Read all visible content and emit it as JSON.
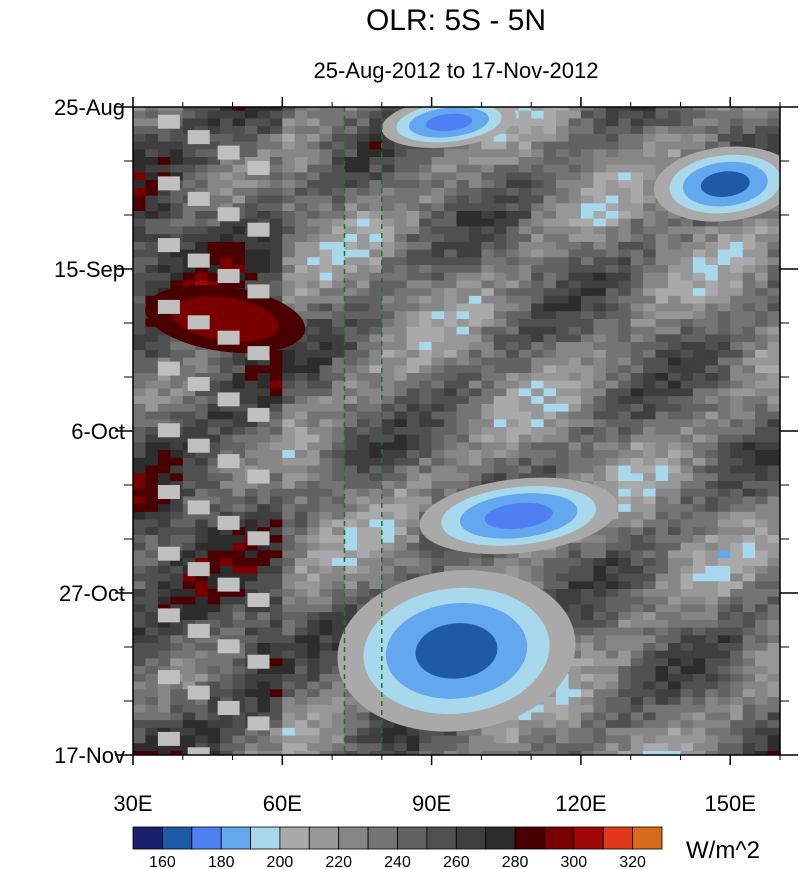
{
  "chart_data": {
    "type": "heatmap",
    "title": "OLR: 5S - 5N",
    "subtitle": "25-Aug-2012 to 17-Nov-2012",
    "units": "W/m^2",
    "x_axis": {
      "range": [
        30,
        160
      ],
      "ticks": [
        30,
        60,
        90,
        120,
        150
      ],
      "tick_labels": [
        "30E",
        "60E",
        "90E",
        "120E",
        "150E"
      ],
      "minor_ticks": [
        40,
        50,
        70,
        80,
        100,
        110,
        130,
        140,
        160
      ]
    },
    "y_axis": {
      "range_days_label": [
        "25-Aug",
        "17-Nov"
      ],
      "ticks": [
        "2012-08-25",
        "2012-09-15",
        "2012-10-06",
        "2012-10-27",
        "2012-11-17"
      ],
      "tick_labels": [
        "25-Aug",
        "15-Sep",
        "6-Oct",
        "27-Oct",
        "17-Nov"
      ],
      "direction": "time increases downward"
    },
    "reference_lines": [
      {
        "lon": 72.5,
        "style": "dashed",
        "color": "#1a7a1a"
      },
      {
        "lon": 80,
        "style": "dashed",
        "color": "#1a7a1a"
      }
    ],
    "colorbar": {
      "boundaries": [
        160,
        170,
        180,
        190,
        200,
        210,
        220,
        230,
        240,
        250,
        260,
        270,
        280,
        290,
        300,
        310,
        320
      ],
      "labels": [
        "160",
        "180",
        "200",
        "220",
        "240",
        "260",
        "280",
        "300",
        "320"
      ],
      "colors": [
        "#1a1f6e",
        "#1f5aa6",
        "#4f7ff2",
        "#63a8ee",
        "#a8d8ec",
        "#a9a9a9",
        "#979797",
        "#868686",
        "#747474",
        "#626262",
        "#505050",
        "#3f3f3f",
        "#2d2d2d",
        "#4a0000",
        "#7a0000",
        "#a00808",
        "#e03818",
        "#d86a1a"
      ]
    },
    "missing_color": "#c0c0c0",
    "features": [
      {
        "lon": [
          85,
          102
        ],
        "date": [
          "2012-08-25",
          "2012-08-29"
        ],
        "value_approx": 170,
        "desc": "convective"
      },
      {
        "lon": [
          140,
          158
        ],
        "date": [
          "2012-09-01",
          "2012-09-07"
        ],
        "value_approx": 160
      },
      {
        "lon": [
          35,
          62
        ],
        "date": [
          "2012-09-18",
          "2012-09-25"
        ],
        "value_approx": 295
      },
      {
        "lon": [
          95,
          120
        ],
        "date": [
          "2012-10-14",
          "2012-10-20"
        ],
        "value_approx": 170
      },
      {
        "lon": [
          80,
          110
        ],
        "date": [
          "2012-10-28",
          "2012-11-10"
        ],
        "value_approx": 165
      }
    ]
  }
}
